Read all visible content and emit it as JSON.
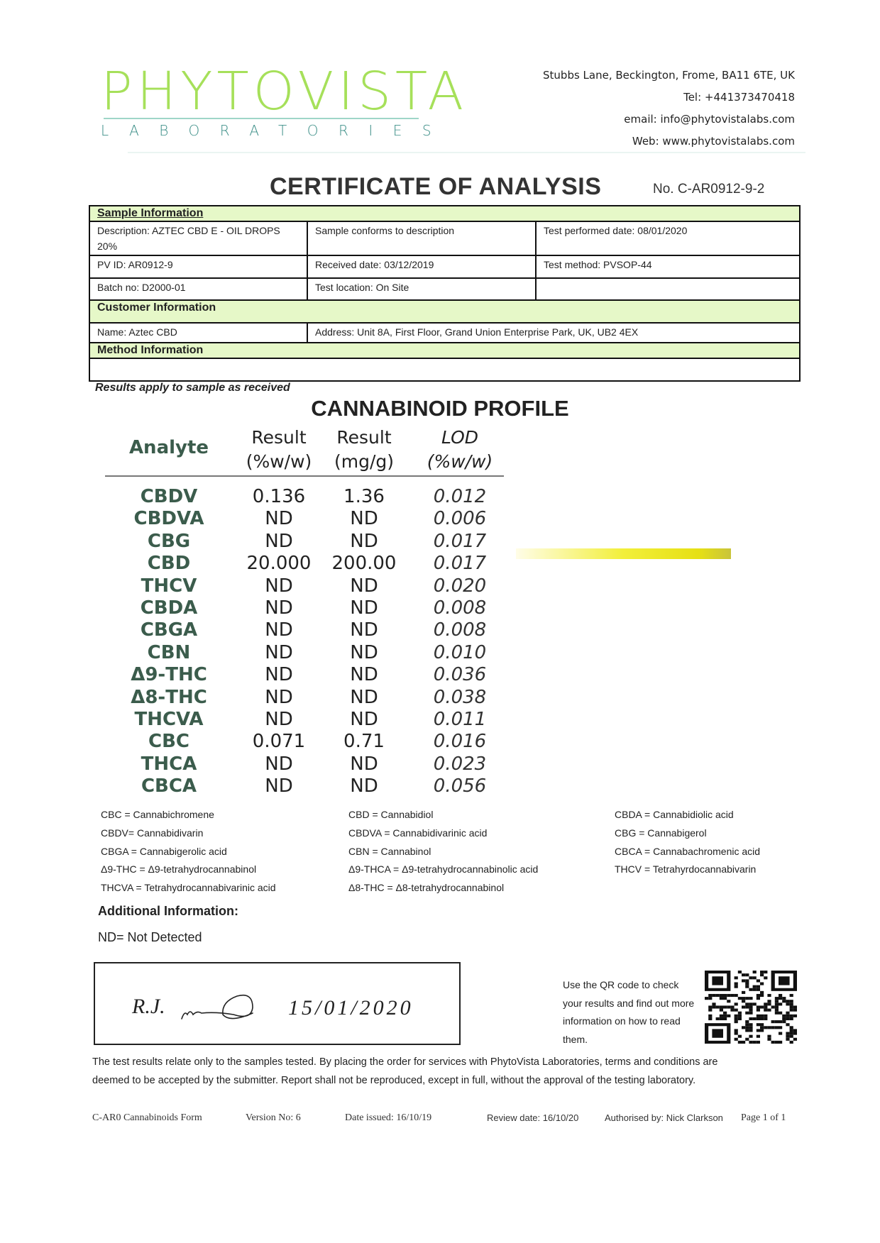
{
  "header": {
    "logo_main": "PHYTOVISTA",
    "logo_sub": "LABORATORIES",
    "contact": [
      "Stubbs Lane, Beckington, Frome, BA11 6TE, UK",
      "Tel: +441373470418",
      "email: info@phytovistalabs.com",
      "Web: www.phytovistalabs.com"
    ],
    "brand_colors": {
      "logo_green": "#a6e05a",
      "logo_teal": "#3d8f88"
    }
  },
  "title": "CERTIFICATE OF ANALYSIS",
  "cert_no": "No. C-AR0912-9-2",
  "info": {
    "sample_header": "Sample Information",
    "description_line1": "Description: AZTEC CBD E - OIL DROPS",
    "description_line2": "20%",
    "conforms": "Sample conforms to description",
    "test_date": "Test performed date: 08/01/2020",
    "pv_id": "PV ID: AR0912-9",
    "received": "Received date: 03/12/2019",
    "method": "Test method: PVSOP-44",
    "batch": "Batch no: D2000-01",
    "location": "Test location: On Site",
    "customer_header": "Customer Information",
    "name": "Name: Aztec CBD",
    "address": "Address: Unit 8A, First Floor, Grand Union Enterprise Park, UK, UB2 4EX",
    "method_header": "Method Information",
    "section_color": "#e6f8c8"
  },
  "results_note": "Results apply to sample as received",
  "profile": {
    "title": "CANNABINOID PROFILE",
    "headers": {
      "analyte": "Analyte",
      "r1a": "Result",
      "r1b": "(%w/w)",
      "r2a": "Result",
      "r2b": "(mg/g)",
      "loda": "LOD",
      "lodb": "(%w/w)"
    },
    "rows": [
      {
        "analyte": "CBDV",
        "pct": "0.136",
        "mg": "1.36",
        "lod": "0.012"
      },
      {
        "analyte": "CBDVA",
        "pct": "ND",
        "mg": "ND",
        "lod": "0.006"
      },
      {
        "analyte": "CBG",
        "pct": "ND",
        "mg": "ND",
        "lod": "0.017"
      },
      {
        "analyte": "CBD",
        "pct": "20.000",
        "mg": "200.00",
        "lod": "0.017"
      },
      {
        "analyte": "THCV",
        "pct": "ND",
        "mg": "ND",
        "lod": "0.020"
      },
      {
        "analyte": "CBDA",
        "pct": "ND",
        "mg": "ND",
        "lod": "0.008"
      },
      {
        "analyte": "CBGA",
        "pct": "ND",
        "mg": "ND",
        "lod": "0.008"
      },
      {
        "analyte": "CBN",
        "pct": "ND",
        "mg": "ND",
        "lod": "0.010"
      },
      {
        "analyte": "Δ9-THC",
        "pct": "ND",
        "mg": "ND",
        "lod": "0.036"
      },
      {
        "analyte": "Δ8-THC",
        "pct": "ND",
        "mg": "ND",
        "lod": "0.038"
      },
      {
        "analyte": "THCVA",
        "pct": "ND",
        "mg": "ND",
        "lod": "0.011"
      },
      {
        "analyte": "CBC",
        "pct": "0.071",
        "mg": "0.71",
        "lod": "0.016"
      },
      {
        "analyte": "THCA",
        "pct": "ND",
        "mg": "ND",
        "lod": "0.023"
      },
      {
        "analyte": "CBCA",
        "pct": "ND",
        "mg": "ND",
        "lod": "0.056"
      }
    ]
  },
  "legend": [
    [
      "CBC =  Cannabichromene",
      "CBDV= Cannabidivarin",
      "CBGA = Cannabigerolic acid",
      "Δ9-THC = Δ9-tetrahydrocannabinol",
      "THCVA = Tetrahydrocannabivarinic acid"
    ],
    [
      "CBD =    Cannabidiol",
      "CBDVA = Cannabidivarinic acid",
      "CBN =     Cannabinol",
      "Δ9-THCA  = Δ9-tetrahydrocannabinolic acid",
      "Δ8-THC = Δ8-tetrahydrocannabinol"
    ],
    [
      "CBDA = Cannabidiolic acid",
      "CBG =  Cannabigerol",
      "CBCA = Cannabachromenic acid",
      "THCV = Tetrahyrdocannabivarin"
    ]
  ],
  "additional_title": "Additional Information:",
  "nd_note": "ND= Not Detected",
  "signature": {
    "initials": "R.J.",
    "date": "15/01/2020"
  },
  "qr_text": "Use the QR code to check your results and find out more information on how to read them.",
  "disclaimer": [
    "The test results relate only to the samples tested.  By placing the order for services with PhytoVista Laboratories, terms and conditions are",
    "deemed to be accepted by the submitter. Report shall not be reproduced, except in full, without the approval of the testing laboratory."
  ],
  "footer": {
    "form": "C-AR0 Cannabinoids Form",
    "version": "Version No:  6",
    "issued": "Date issued: 16/10/19",
    "review": "Review  date: 16/10/20",
    "authorised": "Authorised by: Nick Clarkson",
    "page": "Page  1 of 1"
  }
}
